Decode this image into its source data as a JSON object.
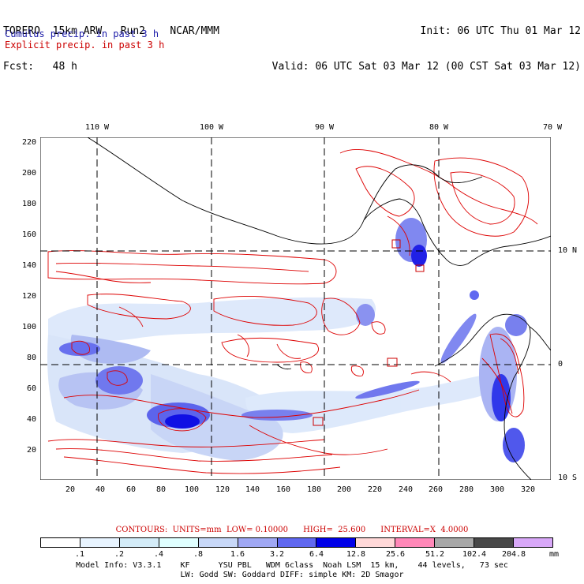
{
  "header": {
    "left_line1": "TORERO  15km ARW   Run2    NCAR/MMM",
    "left_line2": "Fcst:   48 h",
    "right_line1": "Init: 06 UTC Thu 01 Mar 12",
    "right_line2": "Valid: 06 UTC Sat 03 Mar 12 (00 CST Sat 03 Mar 12)"
  },
  "legend": {
    "cumulus": "Cumulus precip. in past 3 h",
    "explicit": "Explicit precip. in past 3 h",
    "cumulus_color": "#1a1aa8",
    "explicit_color": "#cc0000"
  },
  "map": {
    "longitude_labels": [
      "110 W",
      "100 W",
      "90 W",
      "80 W",
      "70 W"
    ],
    "latitude_labels": [
      "10 N",
      "0",
      "10 S"
    ],
    "y_ticks": [
      "220",
      "200",
      "180",
      "160",
      "140",
      "120",
      "100",
      "80",
      "60",
      "40",
      "20"
    ],
    "x_ticks": [
      "20",
      "40",
      "60",
      "80",
      "100",
      "120",
      "140",
      "160",
      "180",
      "200",
      "220",
      "240",
      "260",
      "280",
      "300",
      "320"
    ]
  },
  "contours_line": "CONTOURS:  UNITS=mm  LOW= 0.10000      HIGH=  25.600      INTERVAL=X  4.0000",
  "colorbar": {
    "ticks": [
      ".1",
      ".2",
      ".4",
      ".8",
      "1.6",
      "3.2",
      "6.4",
      "12.8",
      "25.6",
      "51.2",
      "102.4",
      "204.8"
    ],
    "units": "mm",
    "colors": [
      "#ffffff",
      "#e8f4ff",
      "#d4ecf8",
      "#e0ffff",
      "#c8d8f8",
      "#a0a8f4",
      "#6068f0",
      "#0000e8",
      "#ffd8d8",
      "#ff88b8",
      "#a8a8a8",
      "#484848",
      "#d8a8f8"
    ]
  },
  "footer": {
    "line1": "Model Info: V3.3.1    KF      YSU PBL   WDM 6class  Noah LSM  15 km,    44 levels,   73 sec",
    "line2": "LW: Godd SW: Goddard DIFF: simple KM: 2D Smagor"
  }
}
